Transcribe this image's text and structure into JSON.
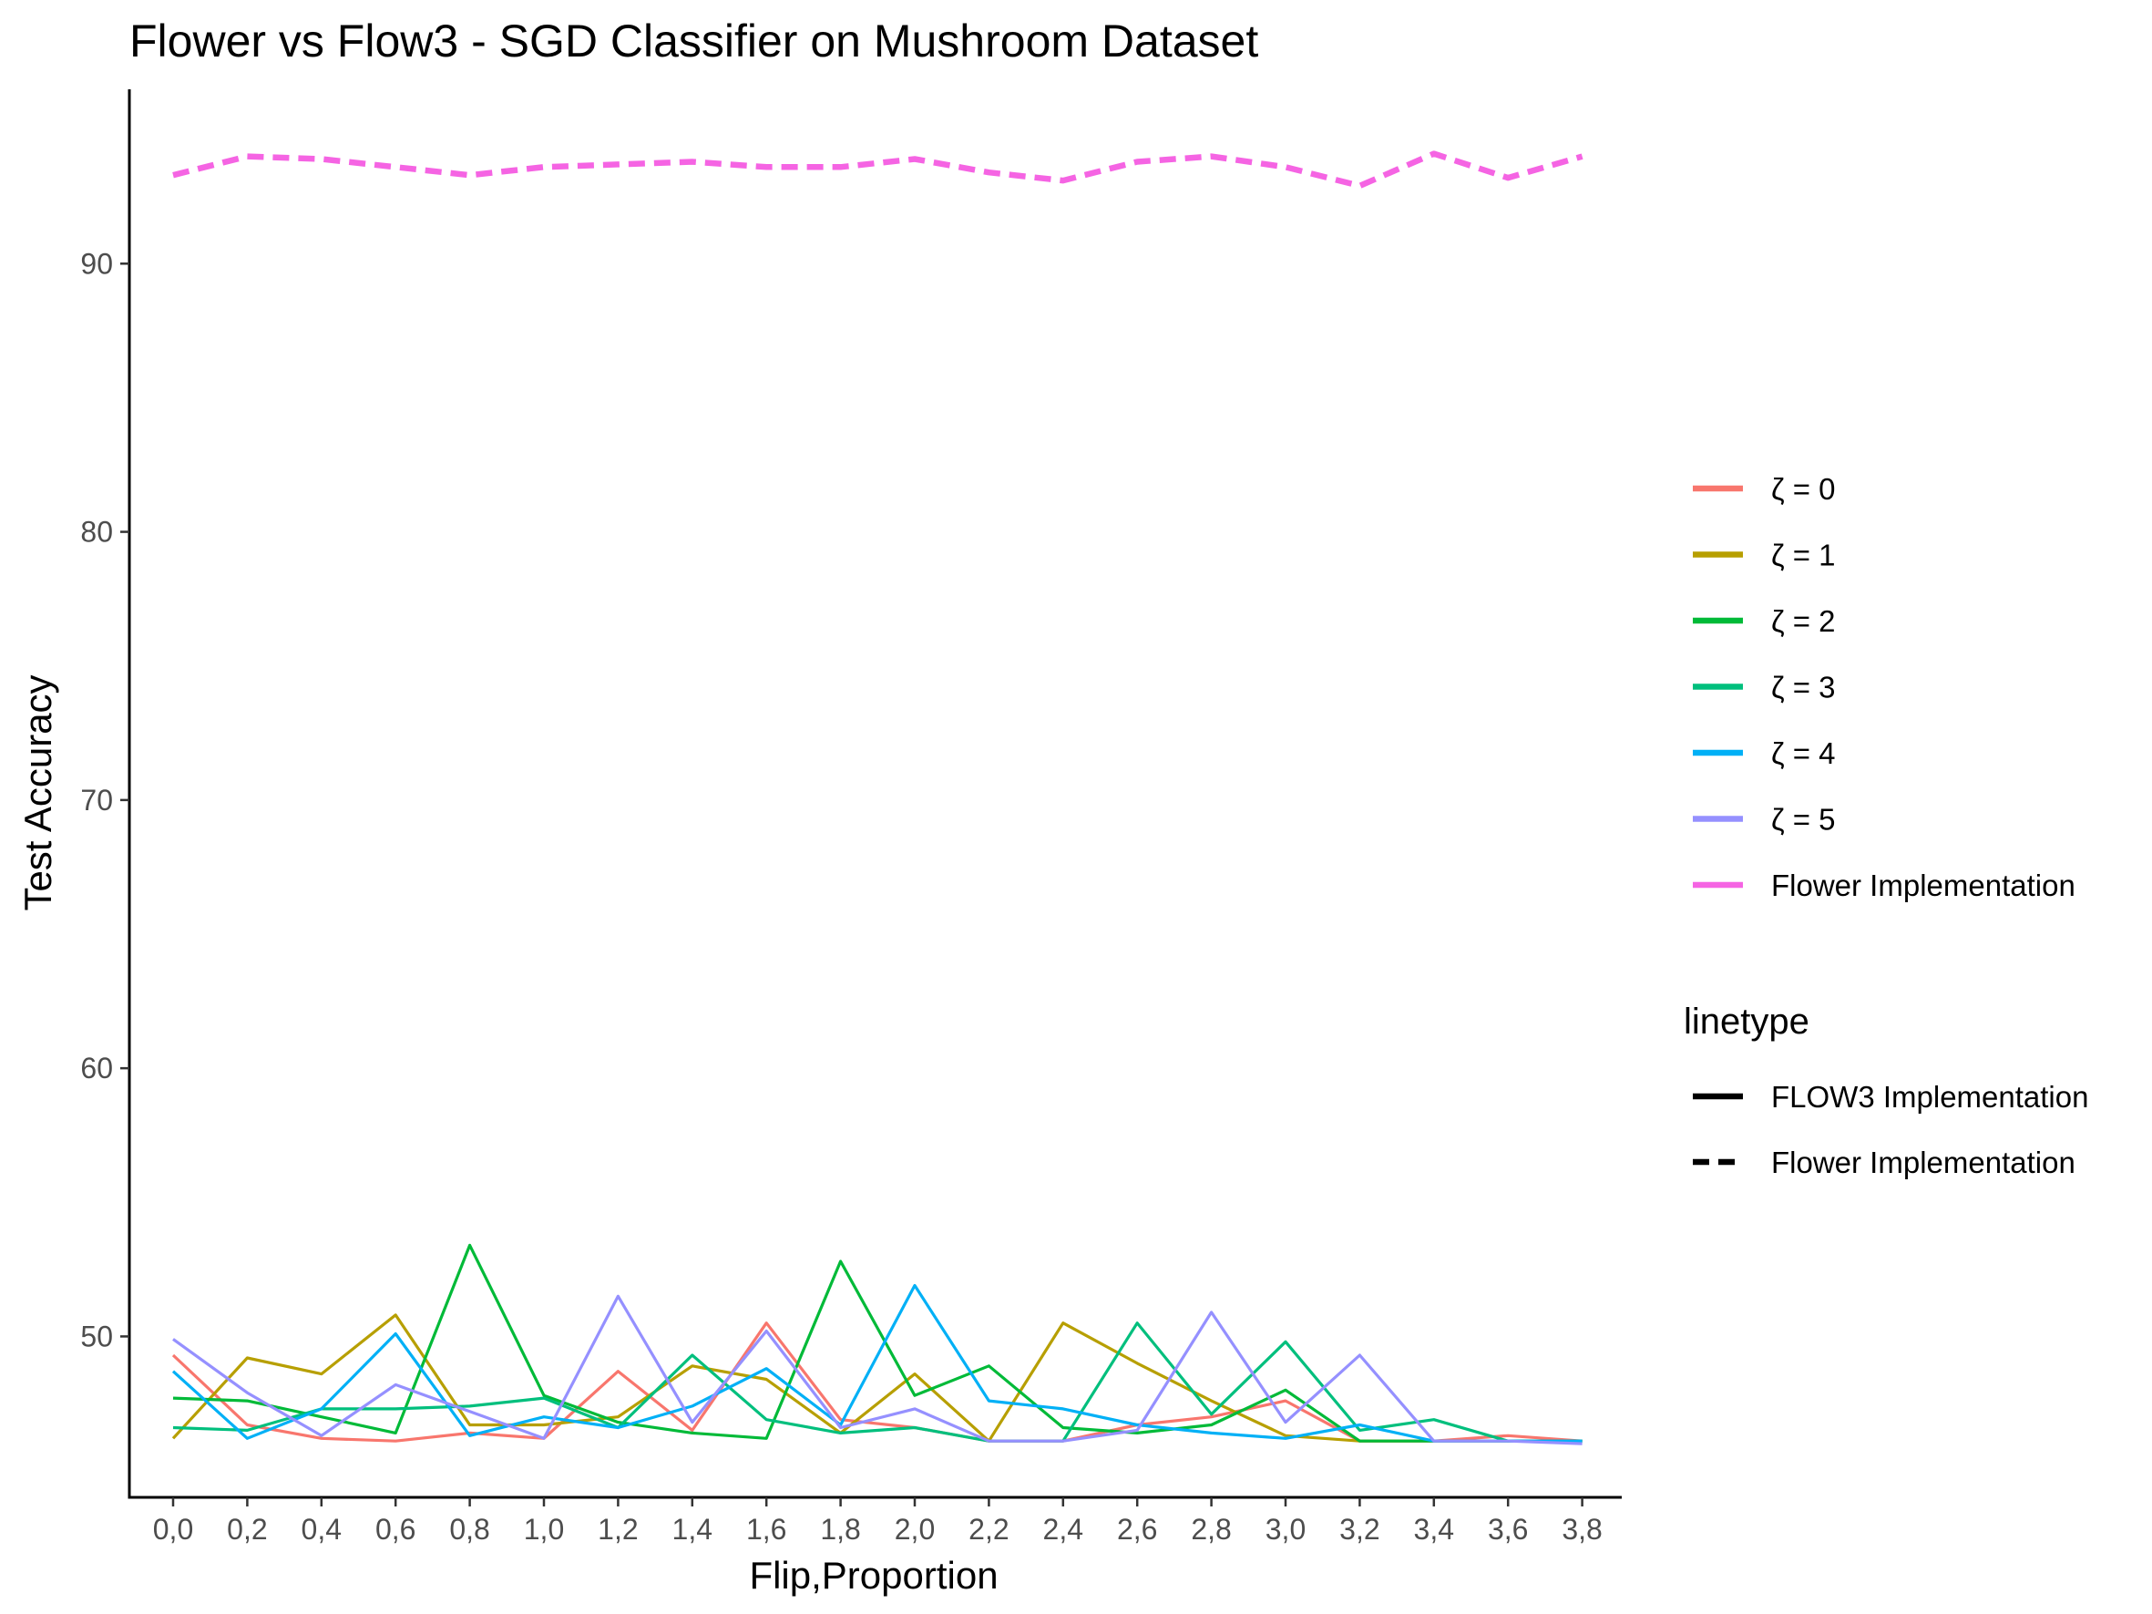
{
  "chart_data": {
    "type": "line",
    "title": "Flower vs Flow3 - SGD Classifier on Mushroom Dataset",
    "xlabel": "Flip,Proportion",
    "ylabel": "Test Accuracy",
    "categories": [
      "0,0",
      "0,2",
      "0,4",
      "0,6",
      "0,8",
      "1,0",
      "1,2",
      "1,4",
      "1,6",
      "1,8",
      "2,0",
      "2,2",
      "2,4",
      "2,6",
      "2,8",
      "3,0",
      "3,2",
      "3,4",
      "3,6",
      "3,8"
    ],
    "y_ticks": [
      50,
      60,
      70,
      80,
      90
    ],
    "ylim": [
      44,
      96.5
    ],
    "grid": false,
    "legend_position": "right",
    "series": [
      {
        "name": "ζ = 0",
        "color": "#F8766D",
        "linetype": "FLOW3 Implementation",
        "values": [
          49.3,
          46.7,
          46.2,
          46.1,
          46.4,
          46.2,
          48.7,
          46.5,
          50.5,
          46.9,
          46.6,
          46.1,
          46.1,
          46.7,
          47.0,
          47.6,
          46.1,
          46.1,
          46.3,
          46.1
        ]
      },
      {
        "name": "ζ = 1",
        "color": "#B79F00",
        "linetype": "FLOW3 Implementation",
        "values": [
          46.2,
          49.2,
          48.6,
          50.8,
          46.7,
          46.7,
          47.0,
          48.9,
          48.4,
          46.4,
          48.6,
          46.1,
          50.5,
          49.0,
          47.6,
          46.3,
          46.1,
          46.1,
          46.1,
          46.1
        ]
      },
      {
        "name": "ζ = 2",
        "color": "#00BA38",
        "linetype": "FLOW3 Implementation",
        "values": [
          47.7,
          47.6,
          47.0,
          46.4,
          53.4,
          47.8,
          46.8,
          46.4,
          46.2,
          52.8,
          47.8,
          48.9,
          46.6,
          46.4,
          46.7,
          48.0,
          46.1,
          46.1,
          46.1,
          46.1
        ]
      },
      {
        "name": "ζ = 3",
        "color": "#00BF7D",
        "linetype": "FLOW3 Implementation",
        "values": [
          46.6,
          46.5,
          47.3,
          47.3,
          47.4,
          47.7,
          46.6,
          49.3,
          46.9,
          46.4,
          46.6,
          46.1,
          46.1,
          50.5,
          47.1,
          49.8,
          46.5,
          46.9,
          46.1,
          46.1
        ]
      },
      {
        "name": "ζ = 4",
        "color": "#00B0F6",
        "linetype": "FLOW3 Implementation",
        "values": [
          48.7,
          46.2,
          47.3,
          50.1,
          46.3,
          47.0,
          46.6,
          47.4,
          48.8,
          46.7,
          51.9,
          47.6,
          47.3,
          46.7,
          46.4,
          46.2,
          46.7,
          46.1,
          46.1,
          46.1
        ]
      },
      {
        "name": "ζ = 5",
        "color": "#9590FF",
        "linetype": "FLOW3 Implementation",
        "values": [
          49.9,
          47.9,
          46.3,
          48.2,
          47.2,
          46.2,
          51.5,
          46.8,
          50.2,
          46.6,
          47.3,
          46.1,
          46.1,
          46.5,
          50.9,
          46.8,
          49.3,
          46.1,
          46.1,
          46.0
        ]
      },
      {
        "name": "Flower Implementation",
        "color": "#F564E3",
        "linetype": "Flower Implementation",
        "values": [
          93.3,
          94.0,
          93.9,
          93.6,
          93.3,
          93.6,
          93.7,
          93.8,
          93.6,
          93.6,
          93.9,
          93.4,
          93.1,
          93.8,
          94.0,
          93.6,
          92.9,
          94.1,
          93.2,
          94.0
        ]
      }
    ],
    "linetype_legend": {
      "title": "linetype",
      "entries": [
        "FLOW3 Implementation",
        "Flower Implementation"
      ]
    }
  }
}
